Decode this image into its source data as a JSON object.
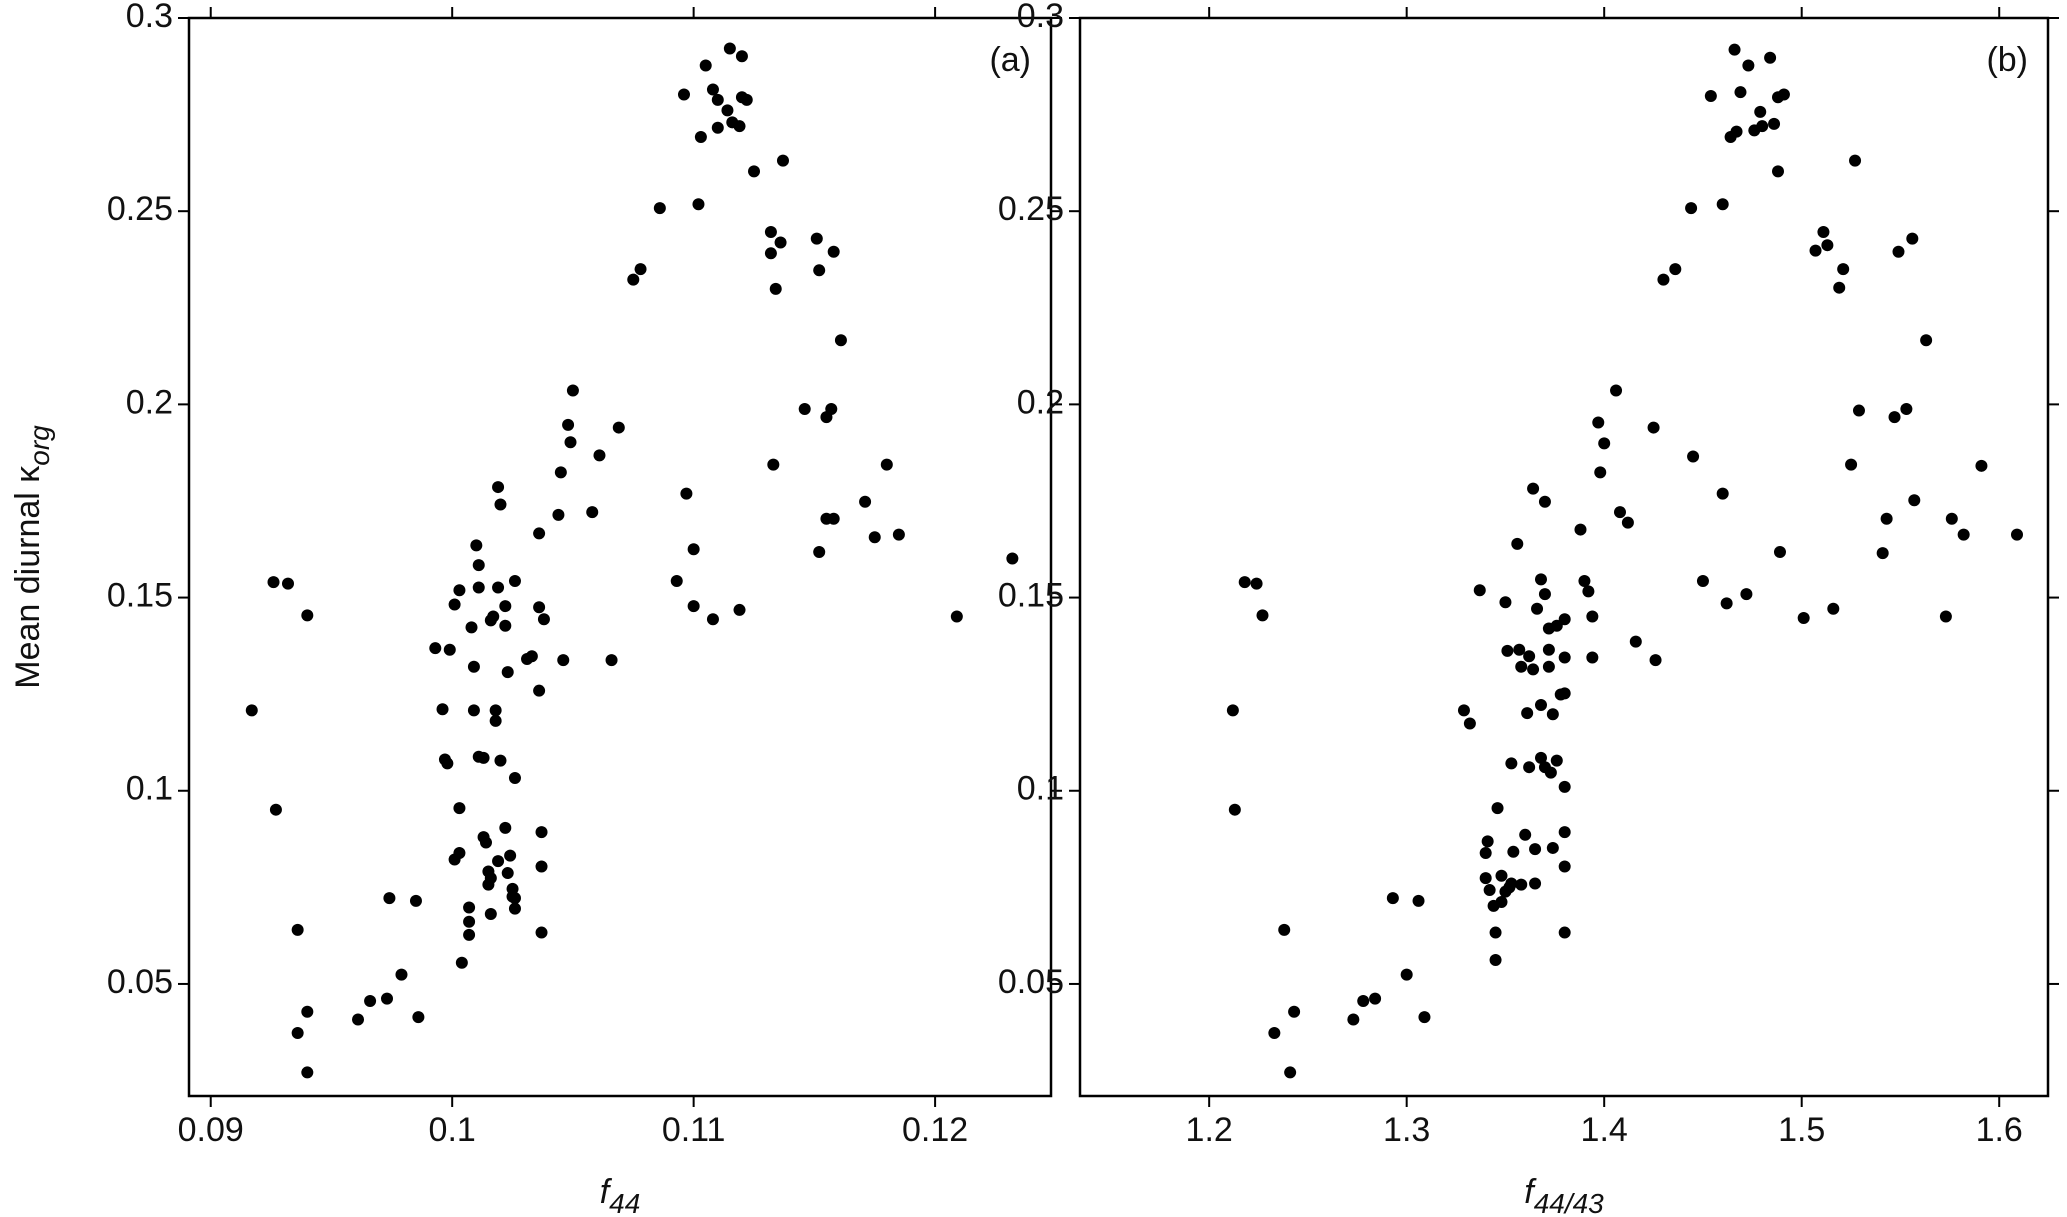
{
  "chart_data": [
    {
      "type": "scatter",
      "panel_label": "(a)",
      "ylabel": "Mean diurnal κ",
      "ylabel_subscript": "org",
      "xlabel": "f",
      "xlabel_subscript": "44",
      "color": "#000000",
      "xlim": [
        0.0891,
        0.1248
      ],
      "ylim": [
        0.021,
        0.3
      ],
      "xticks": [
        0.09,
        0.1,
        0.11,
        0.12
      ],
      "yticks": [
        0.05,
        0.1,
        0.15,
        0.2,
        0.25,
        0.3
      ],
      "x": [
        0.0917,
        0.0926,
        0.0932,
        0.0927,
        0.094,
        0.0936,
        0.0936,
        0.094,
        0.094,
        0.0961,
        0.0966,
        0.0973,
        0.0974,
        0.0979,
        0.0985,
        0.0986,
        0.0993,
        0.0996,
        0.0999,
        0.0997,
        0.0998,
        0.1001,
        0.1001,
        0.1003,
        0.1003,
        0.1003,
        0.1004,
        0.1007,
        0.1007,
        0.1007,
        0.1008,
        0.1009,
        0.1009,
        0.101,
        0.1011,
        0.1011,
        0.1011,
        0.1013,
        0.1013,
        0.1014,
        0.1015,
        0.1015,
        0.1016,
        0.1016,
        0.1016,
        0.1017,
        0.1018,
        0.1018,
        0.1019,
        0.1019,
        0.102,
        0.1019,
        0.102,
        0.1022,
        0.1022,
        0.1022,
        0.1023,
        0.1023,
        0.1024,
        0.1025,
        0.1025,
        0.1026,
        0.1026,
        0.1026,
        0.1026,
        0.1031,
        0.1033,
        0.1036,
        0.1036,
        0.1036,
        0.1037,
        0.1037,
        0.1037,
        0.1038,
        0.1045,
        0.1044,
        0.1046,
        0.1048,
        0.1049,
        0.105,
        0.1058,
        0.1061,
        0.1069,
        0.1066,
        0.1075,
        0.1078,
        0.1086,
        0.1093,
        0.1096,
        0.1097,
        0.11,
        0.1102,
        0.11,
        0.1103,
        0.1105,
        0.1108,
        0.1108,
        0.111,
        0.111,
        0.1114,
        0.1115,
        0.1116,
        0.1119,
        0.112,
        0.112,
        0.1122,
        0.1125,
        0.1132,
        0.1132,
        0.1133,
        0.1134,
        0.1136,
        0.1137,
        0.1146,
        0.1151,
        0.1152,
        0.1152,
        0.1155,
        0.1157,
        0.1155,
        0.1158,
        0.1158,
        0.1161,
        0.1171,
        0.1175,
        0.118,
        0.1185,
        0.1232,
        0.1209,
        0.1119
      ],
      "values": [
        0.1208,
        0.154,
        0.1536,
        0.0951,
        0.1454,
        0.064,
        0.0373,
        0.0428,
        0.0271,
        0.0408,
        0.0456,
        0.0462,
        0.0722,
        0.0524,
        0.0715,
        0.0414,
        0.1369,
        0.1211,
        0.1365,
        0.1081,
        0.1071,
        0.1482,
        0.0822,
        0.1519,
        0.0955,
        0.0839,
        0.0555,
        0.0661,
        0.0627,
        0.0698,
        0.1423,
        0.1208,
        0.1321,
        0.1635,
        0.1584,
        0.1526,
        0.1088,
        0.1085,
        0.088,
        0.0866,
        0.0791,
        0.0757,
        0.1441,
        0.0774,
        0.0681,
        0.1451,
        0.1208,
        0.1181,
        0.1786,
        0.1526,
        0.1741,
        0.0818,
        0.1078,
        0.1427,
        0.1478,
        0.0904,
        0.1307,
        0.0787,
        0.0832,
        0.0726,
        0.0746,
        0.0695,
        0.0722,
        0.1543,
        0.1033,
        0.1341,
        0.1348,
        0.1475,
        0.1666,
        0.1259,
        0.0893,
        0.0804,
        0.0633,
        0.1444,
        0.1824,
        0.1714,
        0.1338,
        0.1947,
        0.1902,
        0.2036,
        0.1721,
        0.1868,
        0.194,
        0.1338,
        0.2323,
        0.235,
        0.2508,
        0.1543,
        0.2802,
        0.1769,
        0.1478,
        0.2518,
        0.1625,
        0.2692,
        0.2877,
        0.1444,
        0.2815,
        0.2788,
        0.2716,
        0.2761,
        0.2921,
        0.273,
        0.272,
        0.2795,
        0.2901,
        0.2788,
        0.2603,
        0.2446,
        0.2391,
        0.1844,
        0.2299,
        0.2419,
        0.2631,
        0.1988,
        0.2429,
        0.2347,
        0.1618,
        0.1967,
        0.1988,
        0.1704,
        0.1704,
        0.2395,
        0.2166,
        0.1748,
        0.1656,
        0.1844,
        0.1663,
        0.1601,
        0.1451,
        0.1468
      ]
    },
    {
      "type": "scatter",
      "panel_label": "(b)",
      "xlabel": "f",
      "xlabel_subscript": "44/43",
      "color": "#000000",
      "xlim": [
        1.1346,
        1.6247
      ],
      "ylim": [
        0.021,
        0.3
      ],
      "xticks": [
        1.2,
        1.3,
        1.4,
        1.5,
        1.6
      ],
      "yticks": [
        0.05,
        0.1,
        0.15,
        0.2,
        0.25,
        0.3
      ],
      "x": [
        1.212,
        1.218,
        1.224,
        1.213,
        1.227,
        1.238,
        1.233,
        1.243,
        1.241,
        1.273,
        1.278,
        1.284,
        1.293,
        1.3,
        1.306,
        1.309,
        1.329,
        1.332,
        1.337,
        1.34,
        1.34,
        1.341,
        1.342,
        1.344,
        1.345,
        1.345,
        1.346,
        1.348,
        1.348,
        1.35,
        1.35,
        1.351,
        1.352,
        1.353,
        1.353,
        1.354,
        1.356,
        1.357,
        1.358,
        1.358,
        1.36,
        1.361,
        1.362,
        1.362,
        1.364,
        1.364,
        1.365,
        1.365,
        1.366,
        1.368,
        1.368,
        1.368,
        1.37,
        1.37,
        1.372,
        1.37,
        1.372,
        1.372,
        1.373,
        1.374,
        1.374,
        1.376,
        1.376,
        1.378,
        1.38,
        1.38,
        1.38,
        1.38,
        1.38,
        1.38,
        1.38,
        1.388,
        1.39,
        1.392,
        1.394,
        1.394,
        1.397,
        1.398,
        1.4,
        1.406,
        1.408,
        1.412,
        1.416,
        1.425,
        1.426,
        1.43,
        1.436,
        1.444,
        1.445,
        1.45,
        1.454,
        1.46,
        1.46,
        1.462,
        1.464,
        1.467,
        1.472,
        1.466,
        1.473,
        1.469,
        1.476,
        1.479,
        1.48,
        1.484,
        1.486,
        1.488,
        1.491,
        1.488,
        1.489,
        1.501,
        1.507,
        1.511,
        1.513,
        1.516,
        1.519,
        1.521,
        1.525,
        1.527,
        1.529,
        1.541,
        1.543,
        1.547,
        1.549,
        1.553,
        1.557,
        1.563,
        1.556,
        1.573,
        1.576,
        1.582,
        1.591,
        1.609
      ],
      "values": [
        0.1208,
        0.154,
        0.1536,
        0.0951,
        0.1454,
        0.064,
        0.0373,
        0.0428,
        0.0271,
        0.0408,
        0.0456,
        0.0462,
        0.0722,
        0.0524,
        0.0715,
        0.0414,
        0.1208,
        0.1174,
        0.1519,
        0.0774,
        0.0839,
        0.0869,
        0.0743,
        0.0702,
        0.0633,
        0.0562,
        0.0955,
        0.078,
        0.0712,
        0.0739,
        0.1488,
        0.1362,
        0.075,
        0.076,
        0.1071,
        0.0842,
        0.1639,
        0.1365,
        0.1321,
        0.0757,
        0.0886,
        0.1201,
        0.1061,
        0.1348,
        0.1782,
        0.1314,
        0.076,
        0.0849,
        0.1471,
        0.1222,
        0.1547,
        0.1085,
        0.1748,
        0.1509,
        0.142,
        0.1061,
        0.1365,
        0.1321,
        0.1047,
        0.0852,
        0.1198,
        0.1427,
        0.1078,
        0.1249,
        0.101,
        0.1444,
        0.1345,
        0.1252,
        0.0893,
        0.0804,
        0.0633,
        0.1676,
        0.1543,
        0.1516,
        0.1451,
        0.1345,
        0.1953,
        0.1824,
        0.1899,
        0.2036,
        0.1721,
        0.1694,
        0.1386,
        0.194,
        0.1338,
        0.2323,
        0.235,
        0.2508,
        0.1865,
        0.1543,
        0.2798,
        0.2518,
        0.1769,
        0.1485,
        0.2692,
        0.2706,
        0.1509,
        0.2918,
        0.2877,
        0.2808,
        0.2709,
        0.2757,
        0.272,
        0.2897,
        0.2726,
        0.2795,
        0.2802,
        0.2603,
        0.1618,
        0.1447,
        0.2398,
        0.2446,
        0.2412,
        0.1471,
        0.2302,
        0.235,
        0.1844,
        0.2631,
        0.1984,
        0.1615,
        0.1704,
        0.1967,
        0.2395,
        0.1988,
        0.1752,
        0.2166,
        0.2429,
        0.1451,
        0.1704,
        0.1663,
        0.1841,
        0.1663
      ]
    }
  ]
}
